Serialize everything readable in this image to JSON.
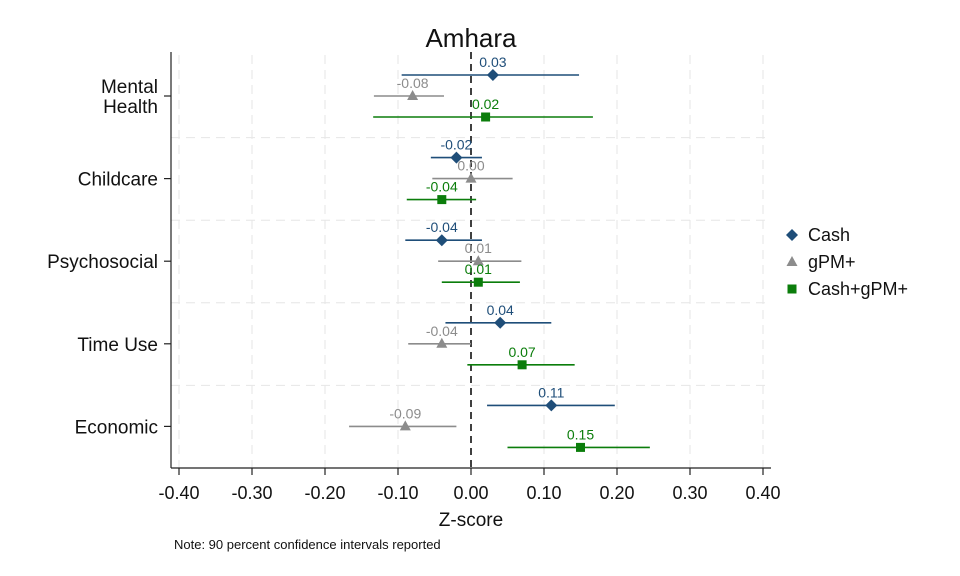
{
  "chart_data": {
    "type": "scatter",
    "title": "Amhara",
    "xlabel": "Z-score",
    "xlim": [
      -0.42,
      0.42
    ],
    "xticks": [
      -0.4,
      -0.3,
      -0.2,
      -0.1,
      0.0,
      0.1,
      0.2,
      0.3,
      0.4
    ],
    "xtick_labels": [
      "-0.40",
      "-0.30",
      "-0.20",
      "-0.10",
      "0.00",
      "0.10",
      "0.20",
      "0.30",
      "0.40"
    ],
    "reference_line": 0,
    "grid": true,
    "legend_position": "right",
    "categories": [
      {
        "lines": [
          "Mental",
          "Health"
        ]
      },
      {
        "lines": [
          "Childcare"
        ]
      },
      {
        "lines": [
          "Psychosocial"
        ]
      },
      {
        "lines": [
          "Time Use"
        ]
      },
      {
        "lines": [
          "Economic"
        ]
      }
    ],
    "series": [
      {
        "name": "Cash",
        "marker": "diamond",
        "color": "#1f4e79",
        "points": [
          {
            "est": 0.03,
            "lo": -0.095,
            "hi": 0.148,
            "label": "0.03"
          },
          {
            "est": -0.02,
            "lo": -0.055,
            "hi": 0.015,
            "label": "-0.02"
          },
          {
            "est": -0.04,
            "lo": -0.09,
            "hi": 0.015,
            "label": "-0.04"
          },
          {
            "est": 0.04,
            "lo": -0.035,
            "hi": 0.11,
            "label": "0.04"
          },
          {
            "est": 0.11,
            "lo": 0.022,
            "hi": 0.197,
            "label": "0.11"
          }
        ]
      },
      {
        "name": "gPM+",
        "marker": "triangle",
        "color": "#8c8c8c",
        "points": [
          {
            "est": -0.08,
            "lo": -0.133,
            "hi": -0.037,
            "label": "-0.08"
          },
          {
            "est": 0.0,
            "lo": -0.053,
            "hi": 0.057,
            "label": "0.00"
          },
          {
            "est": 0.01,
            "lo": -0.045,
            "hi": 0.069,
            "label": "0.01"
          },
          {
            "est": -0.04,
            "lo": -0.086,
            "hi": 0.0,
            "label": "-0.04"
          },
          {
            "est": -0.09,
            "lo": -0.167,
            "hi": -0.02,
            "label": "-0.09"
          }
        ]
      },
      {
        "name": "Cash+gPM+",
        "marker": "square",
        "color": "#0b7d0b",
        "points": [
          {
            "est": 0.02,
            "lo": -0.134,
            "hi": 0.167,
            "label": "0.02"
          },
          {
            "est": -0.04,
            "lo": -0.088,
            "hi": 0.007,
            "label": "-0.04"
          },
          {
            "est": 0.01,
            "lo": -0.04,
            "hi": 0.067,
            "label": "0.01"
          },
          {
            "est": 0.07,
            "lo": -0.005,
            "hi": 0.142,
            "label": "0.07"
          },
          {
            "est": 0.15,
            "lo": 0.05,
            "hi": 0.245,
            "label": "0.15"
          }
        ]
      }
    ]
  },
  "note": "Note: 90 percent confidence intervals reported"
}
